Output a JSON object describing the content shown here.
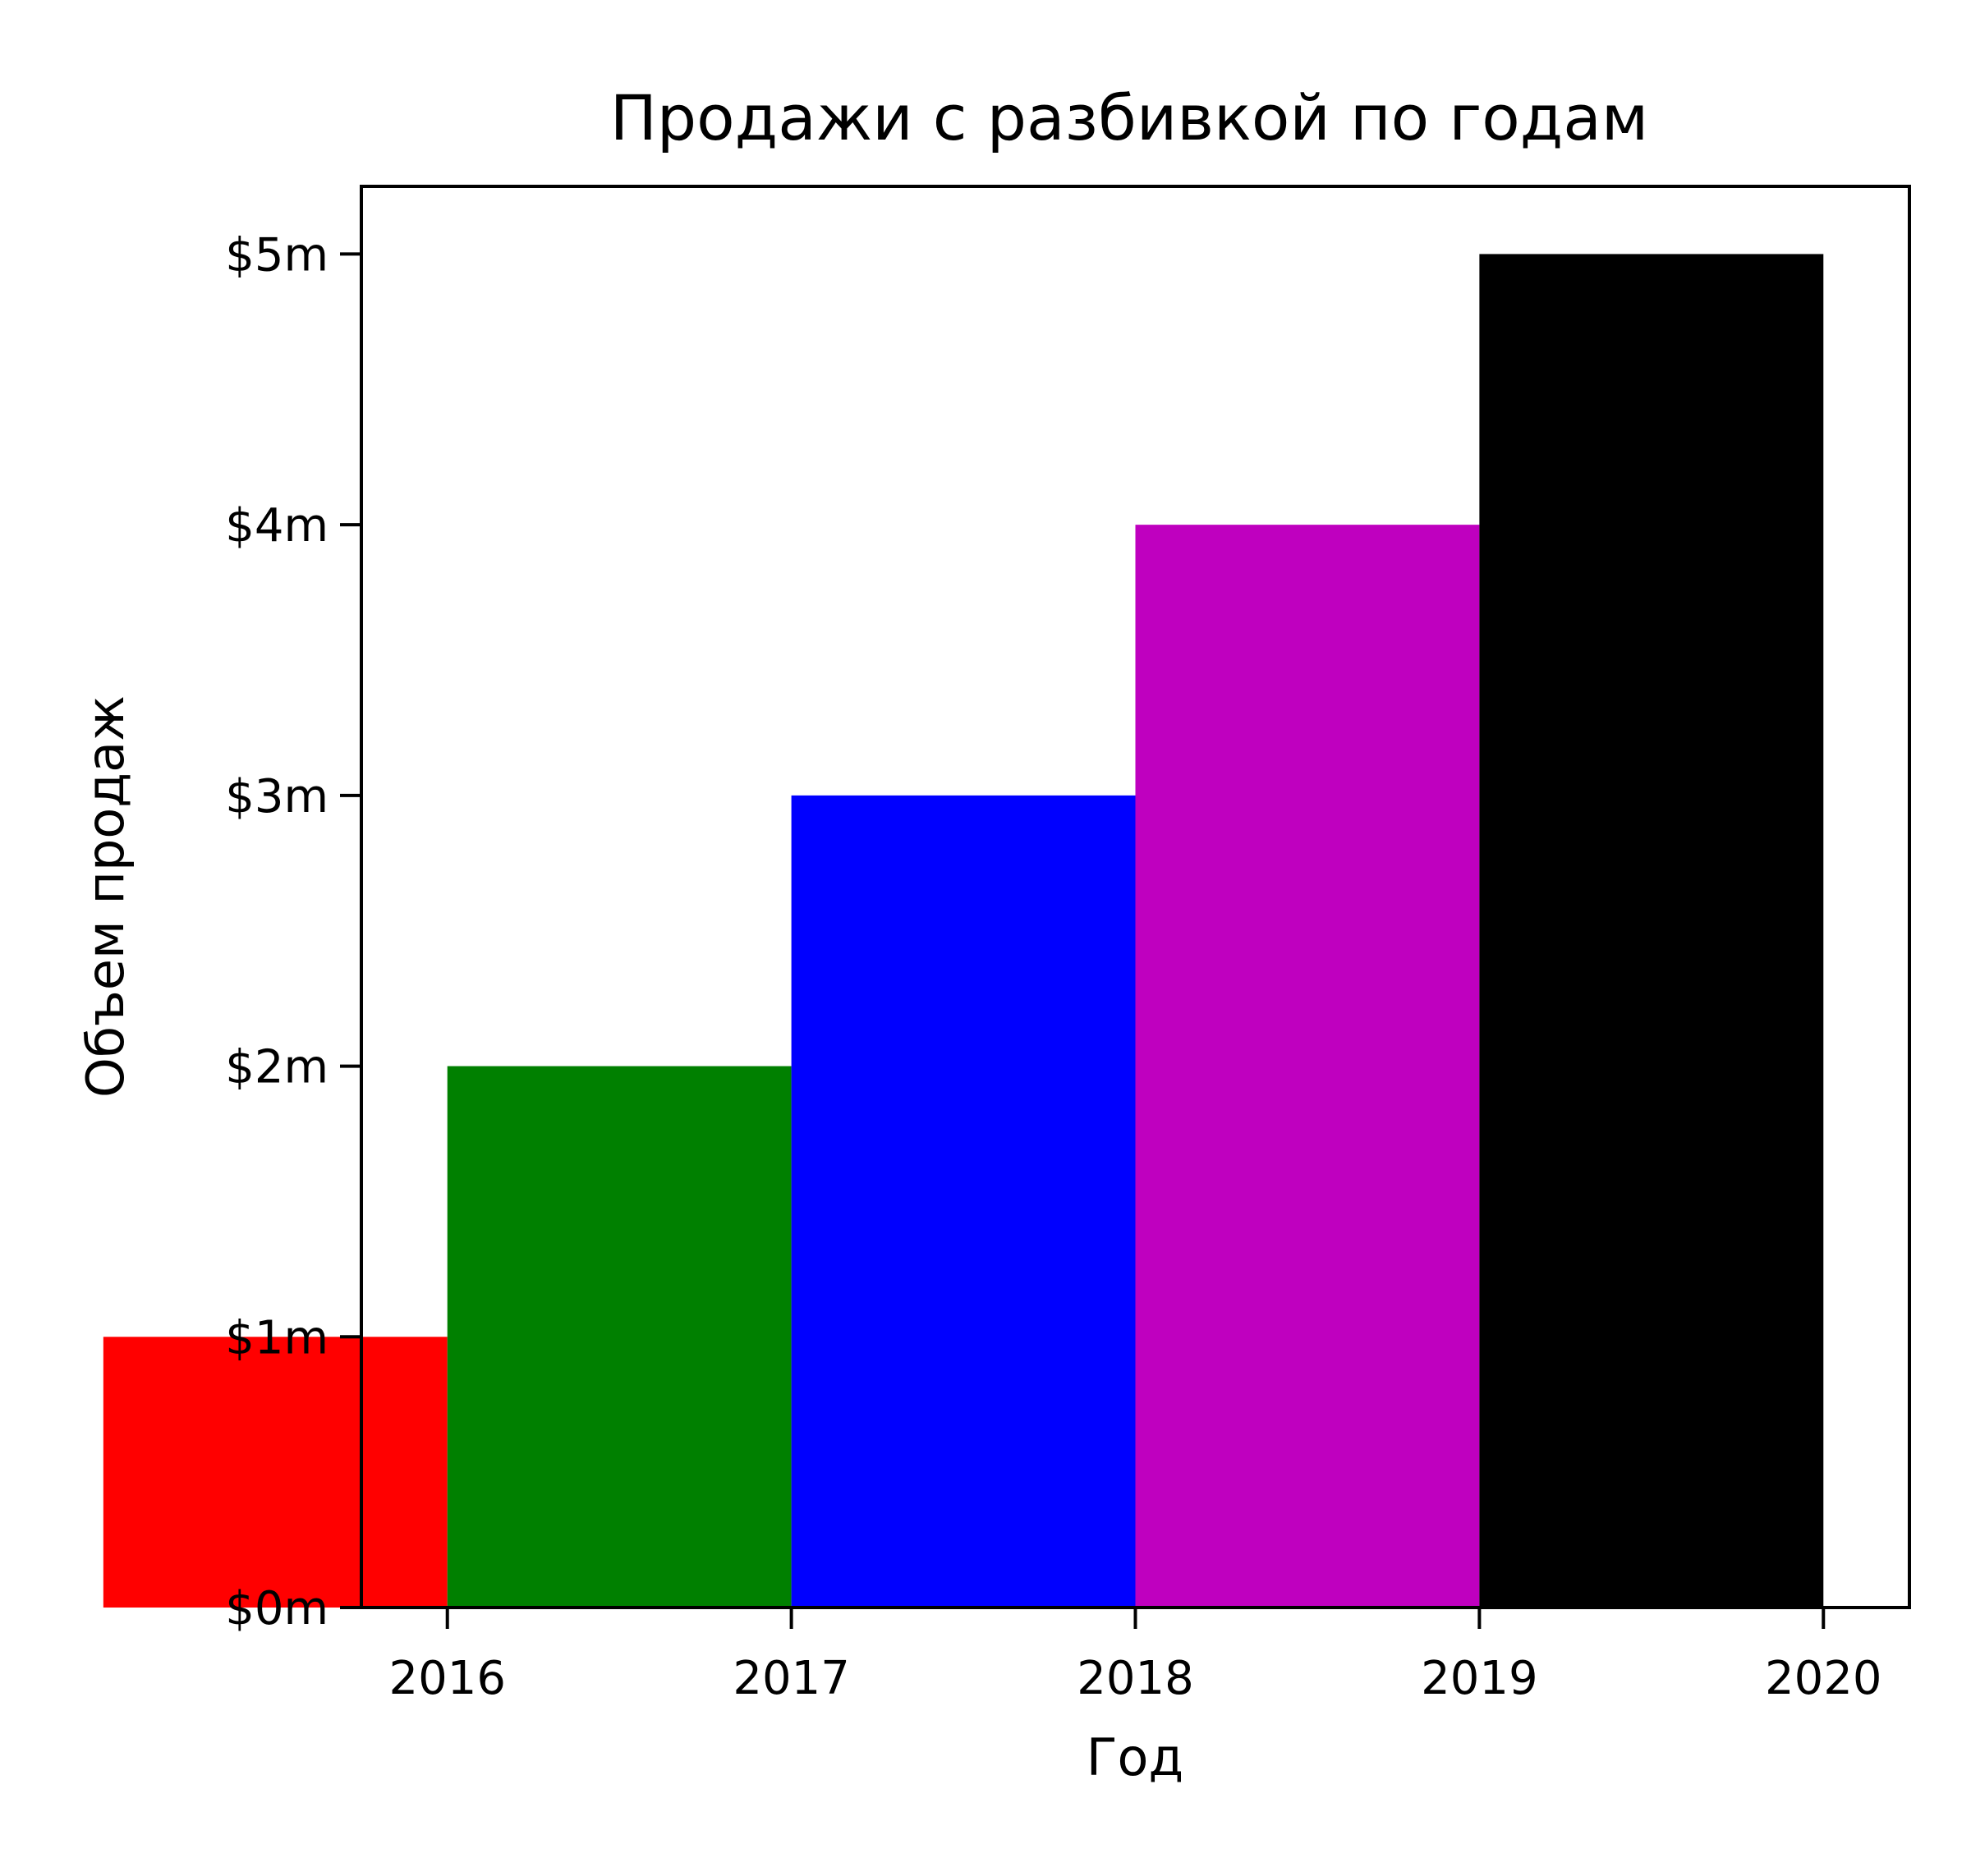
{
  "chart_data": {
    "type": "bar",
    "title": "Продажи с разбивкой по годам",
    "xlabel": "Год",
    "ylabel": "Объем продаж",
    "categories": [
      "2016",
      "2017",
      "2018",
      "2019",
      "2020"
    ],
    "values": [
      1,
      2,
      3,
      4,
      5
    ],
    "colors": [
      "#ff0000",
      "#008000",
      "#0000ff",
      "#bf00bf",
      "#000000"
    ],
    "ylim": [
      0,
      5.25
    ],
    "yticks": [
      0,
      1,
      2,
      3,
      4,
      5
    ],
    "ytick_labels": [
      "$0m",
      "$1m",
      "$2m",
      "$3m",
      "$4m",
      "$5m"
    ],
    "xlim": [
      2015.75,
      2020.25
    ],
    "xticks": [
      2016,
      2017,
      2018,
      2019,
      2020
    ],
    "xtick_labels": [
      "2016",
      "2017",
      "2018",
      "2019",
      "2020"
    ],
    "bar_alignment": "edge",
    "bar_width": 1,
    "legend": "none",
    "grid": false
  }
}
